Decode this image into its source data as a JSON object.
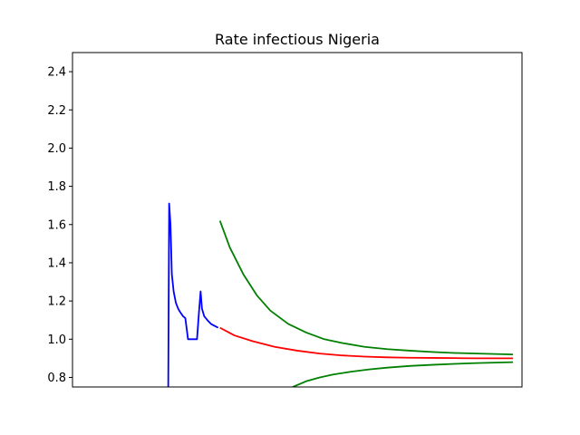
{
  "chart_data": {
    "type": "line",
    "title": "Rate infectious Nigeria",
    "xlabel": "",
    "ylabel": "",
    "xlim": [
      0,
      100
    ],
    "ylim": [
      0.75,
      2.5
    ],
    "yticks": [
      "0.8",
      "1.0",
      "1.2",
      "1.4",
      "1.6",
      "1.8",
      "2.0",
      "2.2",
      "2.4"
    ],
    "x_ticks_shown": false,
    "grid": false,
    "legend": "none",
    "series": [
      {
        "color": "#0000ff",
        "x": [
          21.3,
          21.5,
          21.8,
          22.1,
          22.5,
          23.0,
          23.5,
          24.0,
          24.6,
          25.1,
          25.7,
          26.4,
          27.0,
          27.7,
          28.1,
          28.5,
          28.8,
          29.3,
          30.0,
          30.8,
          31.6,
          32.4
        ],
        "y": [
          0.75,
          1.71,
          1.6,
          1.34,
          1.25,
          1.19,
          1.16,
          1.14,
          1.12,
          1.11,
          1.0,
          1.0,
          1.0,
          1.0,
          1.13,
          1.25,
          1.16,
          1.12,
          1.1,
          1.08,
          1.07,
          1.06
        ]
      },
      {
        "color": "#ff0000",
        "x": [
          32.8,
          36,
          40,
          45,
          50,
          55,
          60,
          65,
          70,
          75,
          80,
          85,
          90,
          95,
          98
        ],
        "y": [
          1.06,
          1.02,
          0.99,
          0.96,
          0.94,
          0.925,
          0.915,
          0.909,
          0.905,
          0.903,
          0.902,
          0.901,
          0.9,
          0.9,
          0.9
        ]
      },
      {
        "color": "#008000",
        "x": [
          32.8,
          35,
          38,
          41,
          44,
          48,
          52,
          56,
          60,
          65,
          70,
          75,
          80,
          85,
          90,
          95,
          98
        ],
        "y": [
          1.62,
          1.48,
          1.34,
          1.23,
          1.15,
          1.08,
          1.035,
          1.0,
          0.98,
          0.96,
          0.948,
          0.94,
          0.933,
          0.928,
          0.925,
          0.922,
          0.92
        ]
      },
      {
        "color": "#008000",
        "x": [
          49.0,
          52,
          55,
          58,
          62,
          66,
          70,
          75,
          80,
          85,
          90,
          95,
          98
        ],
        "y": [
          0.75,
          0.78,
          0.8,
          0.815,
          0.83,
          0.842,
          0.851,
          0.86,
          0.866,
          0.871,
          0.875,
          0.878,
          0.88
        ]
      }
    ]
  }
}
